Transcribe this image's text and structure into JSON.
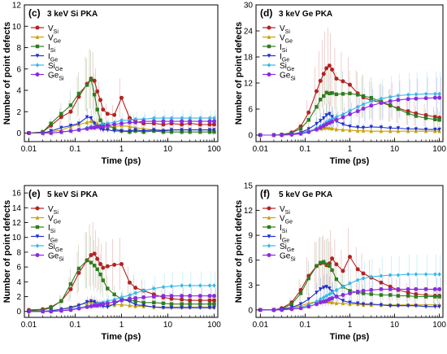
{
  "colors": {
    "V_Si": "#b22222",
    "V_Ge": "#c8a000",
    "I_Si": "#2e7d1e",
    "I_Ge": "#1f2fd0",
    "Si_Ge": "#35b8e6",
    "Ge_Si": "#8a2be2"
  },
  "legend_labels": [
    {
      "key": "V_Si",
      "base": "V",
      "sub": "Si"
    },
    {
      "key": "V_Ge",
      "base": "V",
      "sub": "Ge"
    },
    {
      "key": "I_Si",
      "base": "I",
      "sub": "Si"
    },
    {
      "key": "I_Ge",
      "base": "I",
      "sub": "Ge"
    },
    {
      "key": "Si_Ge",
      "base": "Si",
      "sub": "Ge"
    },
    {
      "key": "Ge_Si",
      "base": "Ge",
      "sub": "Si"
    }
  ],
  "chart_data": [
    {
      "type": "line",
      "panel_label": "(c)",
      "title": "3 keV Si PKA",
      "xlabel": "Time (ps)",
      "ylabel": "Number of point defects",
      "xscale": "log",
      "xlim": [
        0.008,
        120
      ],
      "xticks": [
        0.01,
        0.1,
        1,
        10,
        100
      ],
      "xtick_labels": [
        "0.01",
        "0.1",
        "1",
        "10",
        "100"
      ],
      "ylim": [
        -0.8,
        12
      ],
      "yticks": [
        0,
        2,
        4,
        6,
        8,
        10,
        12
      ],
      "legend_position": "upper-left",
      "x": [
        0.01,
        0.02,
        0.03,
        0.05,
        0.08,
        0.12,
        0.18,
        0.22,
        0.26,
        0.3,
        0.35,
        0.4,
        0.5,
        0.7,
        1,
        1.5,
        2,
        3,
        5,
        8,
        12,
        20,
        30,
        50,
        80,
        100
      ],
      "series": [
        {
          "key": "V_Si",
          "values": [
            0,
            0.1,
            0.7,
            1.5,
            2.0,
            3.4,
            4.6,
            5.1,
            4.9,
            3.9,
            3.1,
            2.2,
            1.8,
            1.7,
            3.3,
            1.4,
            1.1,
            0.9,
            0.9,
            0.8,
            0.9,
            0.8,
            0.9,
            0.8,
            0.8,
            0.8
          ]
        },
        {
          "key": "V_Ge",
          "values": [
            0,
            0,
            0.1,
            0.3,
            0.6,
            0.8,
            1.0,
            1.1,
            1.0,
            0.9,
            0.7,
            0.5,
            0.5,
            0.6,
            0.7,
            0.6,
            0.5,
            0.4,
            0.3,
            0.3,
            0.3,
            0.3,
            0.3,
            0.3,
            0.3,
            0.3
          ]
        },
        {
          "key": "I_Si",
          "values": [
            0,
            0.1,
            0.9,
            1.8,
            2.6,
            3.7,
            4.5,
            5.0,
            3.6,
            2.2,
            1.2,
            0.8,
            0.8,
            0.4,
            0.2,
            0.1,
            0.2,
            0.1,
            0.2,
            0.1,
            0.1,
            0.1,
            0.1,
            0.1,
            0.1,
            0.1
          ]
        },
        {
          "key": "I_Ge",
          "values": [
            0,
            0,
            0.2,
            0.5,
            0.7,
            0.9,
            1.5,
            1.4,
            0.9,
            0.6,
            0.4,
            0.3,
            0.3,
            0.2,
            0.2,
            0.2,
            0.3,
            0.2,
            0.3,
            0.2,
            0.3,
            0.3,
            0.3,
            0.3,
            0.3,
            0.3
          ]
        },
        {
          "key": "Si_Ge",
          "values": [
            0,
            0,
            0,
            0.1,
            0.2,
            0.3,
            0.5,
            0.6,
            0.6,
            0.7,
            0.7,
            0.8,
            0.9,
            1.0,
            1.2,
            1.2,
            1.3,
            1.3,
            1.4,
            1.4,
            1.4,
            1.4,
            1.4,
            1.4,
            1.4,
            1.4
          ]
        },
        {
          "key": "Ge_Si",
          "values": [
            0,
            0,
            0,
            0.1,
            0.2,
            0.3,
            0.4,
            0.5,
            0.5,
            0.6,
            0.6,
            0.6,
            0.7,
            0.8,
            0.9,
            1.0,
            1.0,
            1.1,
            1.1,
            1.1,
            1.1,
            1.1,
            1.1,
            1.1,
            1.1,
            1.1
          ]
        }
      ]
    },
    {
      "type": "line",
      "panel_label": "(d)",
      "title": "3 keV Ge PKA",
      "xlabel": "Time (ps)",
      "ylabel": "Number of point defects",
      "xscale": "log",
      "xlim": [
        0.008,
        120
      ],
      "xticks": [
        0.01,
        0.1,
        1,
        10,
        100
      ],
      "xtick_labels": [
        "0.01",
        "0.1",
        "1",
        "10",
        "100"
      ],
      "ylim": [
        -1.5,
        30
      ],
      "yticks": [
        0,
        6,
        12,
        18,
        24,
        30
      ],
      "legend_position": "upper-left",
      "x": [
        0.01,
        0.02,
        0.03,
        0.05,
        0.08,
        0.12,
        0.18,
        0.22,
        0.26,
        0.3,
        0.35,
        0.4,
        0.5,
        0.7,
        1,
        1.5,
        2,
        3,
        5,
        8,
        12,
        20,
        30,
        50,
        80,
        100
      ],
      "series": [
        {
          "key": "V_Si",
          "values": [
            0,
            0,
            0.1,
            0.6,
            2.0,
            5.2,
            10.1,
            12.5,
            14.1,
            15.4,
            16.0,
            15.1,
            13.0,
            12.4,
            11.6,
            9.6,
            8.7,
            8.0,
            7.5,
            6.8,
            6.2,
            5.5,
            5.0,
            4.6,
            4.2,
            4.0
          ]
        },
        {
          "key": "V_Ge",
          "values": [
            0,
            0,
            0,
            0.2,
            0.5,
            0.9,
            1.3,
            1.5,
            1.6,
            1.7,
            1.6,
            1.5,
            1.3,
            1.2,
            1.1,
            1.0,
            1.0,
            0.9,
            0.9,
            0.9,
            0.9,
            0.9,
            0.9,
            0.9,
            0.9,
            0.9
          ]
        },
        {
          "key": "I_Si",
          "values": [
            0,
            0,
            0.1,
            0.5,
            1.5,
            3.5,
            6.5,
            8.2,
            9.0,
            9.8,
            9.6,
            9.7,
            9.4,
            9.5,
            9.6,
            9.3,
            9.0,
            8.6,
            7.7,
            6.9,
            6.0,
            5.0,
            4.4,
            3.9,
            3.6,
            3.5
          ]
        },
        {
          "key": "I_Ge",
          "values": [
            0,
            0,
            0,
            0.2,
            0.6,
            1.4,
            2.6,
            3.3,
            3.9,
            4.6,
            4.9,
            4.2,
            3.2,
            2.5,
            2.0,
            1.8,
            1.7,
            1.9,
            1.8,
            1.6,
            1.6,
            1.4,
            1.4,
            1.3,
            1.3,
            1.3
          ]
        },
        {
          "key": "Si_Ge",
          "values": [
            0,
            0,
            0,
            0.1,
            0.4,
            0.9,
            1.6,
            2.1,
            2.5,
            3.0,
            3.4,
            3.7,
            4.2,
            4.8,
            5.6,
            6.5,
            7.1,
            7.8,
            8.4,
            8.8,
            9.1,
            9.3,
            9.4,
            9.5,
            9.5,
            9.5
          ]
        },
        {
          "key": "Ge_Si",
          "values": [
            0,
            0,
            0,
            0.1,
            0.3,
            0.7,
            1.3,
            1.7,
            2.1,
            2.5,
            2.8,
            3.1,
            3.5,
            4.1,
            4.8,
            5.5,
            6.1,
            6.8,
            7.4,
            7.8,
            8.1,
            8.3,
            8.4,
            8.5,
            8.6,
            8.6
          ]
        }
      ]
    },
    {
      "type": "line",
      "panel_label": "(e)",
      "title": "5 keV Si PKA",
      "xlabel": "Time (ps)",
      "ylabel": "Number of point defects",
      "xscale": "log",
      "xlim": [
        0.008,
        120
      ],
      "xticks": [
        0.01,
        0.1,
        1,
        10,
        100
      ],
      "xtick_labels": [
        "0.01",
        "0.1",
        "1",
        "10",
        "100"
      ],
      "ylim": [
        -0.8,
        17
      ],
      "yticks": [
        0,
        2,
        4,
        6,
        8,
        10,
        12,
        14,
        16
      ],
      "legend_position": "upper-left",
      "x": [
        0.01,
        0.02,
        0.03,
        0.05,
        0.08,
        0.12,
        0.18,
        0.22,
        0.26,
        0.3,
        0.35,
        0.4,
        0.5,
        0.7,
        1,
        1.5,
        2,
        3,
        5,
        8,
        12,
        20,
        30,
        50,
        80,
        100
      ],
      "series": [
        {
          "key": "V_Si",
          "values": [
            0.2,
            0.3,
            0.6,
            1.4,
            3.0,
            5.2,
            6.9,
            7.6,
            7.8,
            7.1,
            6.4,
            5.9,
            6.1,
            6.3,
            6.4,
            3.9,
            3.2,
            2.8,
            2.3,
            1.9,
            1.7,
            1.6,
            1.5,
            1.5,
            1.5,
            1.5
          ]
        },
        {
          "key": "V_Ge",
          "values": [
            0,
            0,
            0.1,
            0.3,
            0.6,
            0.9,
            1.1,
            1.3,
            1.3,
            1.2,
            1.1,
            1.0,
            0.9,
            0.9,
            0.9,
            0.8,
            0.7,
            0.7,
            0.6,
            0.6,
            0.6,
            0.6,
            0.6,
            0.6,
            0.6,
            0.6
          ]
        },
        {
          "key": "I_Si",
          "values": [
            0.1,
            0.2,
            0.5,
            1.4,
            3.7,
            5.8,
            6.9,
            6.6,
            6.2,
            5.7,
            5.0,
            4.2,
            3.1,
            2.3,
            1.7,
            1.5,
            1.4,
            1.2,
            1.2,
            1.1,
            1.0,
            1.0,
            1.0,
            1.0,
            1.0,
            1.0
          ]
        },
        {
          "key": "I_Ge",
          "values": [
            0,
            0,
            0.1,
            0.3,
            0.5,
            0.8,
            1.3,
            1.4,
            1.3,
            1.0,
            0.8,
            0.7,
            0.6,
            1.0,
            1.6,
            1.4,
            0.9,
            0.8,
            0.6,
            0.5,
            0.5,
            0.5,
            0.5,
            0.5,
            0.5,
            0.5
          ]
        },
        {
          "key": "Si_Ge",
          "values": [
            0,
            0,
            0,
            0.1,
            0.3,
            0.5,
            0.7,
            0.8,
            0.9,
            1.0,
            1.1,
            1.2,
            1.4,
            1.6,
            1.9,
            2.2,
            2.5,
            2.8,
            3.1,
            3.3,
            3.4,
            3.5,
            3.5,
            3.5,
            3.5,
            3.5
          ]
        },
        {
          "key": "Ge_Si",
          "values": [
            0,
            0,
            0,
            0.1,
            0.2,
            0.4,
            0.6,
            0.7,
            0.8,
            0.8,
            0.9,
            1.0,
            1.1,
            1.3,
            1.5,
            1.7,
            1.8,
            1.9,
            2.0,
            2.1,
            2.1,
            2.1,
            2.1,
            2.1,
            2.1,
            2.1
          ]
        }
      ]
    },
    {
      "type": "line",
      "panel_label": "(f)",
      "title": "5 keV Ge PKA",
      "xlabel": "Time (ps)",
      "ylabel": "Number of point defects",
      "xscale": "log",
      "xlim": [
        0.008,
        120
      ],
      "xticks": [
        0.01,
        0.1,
        1,
        10,
        100
      ],
      "xtick_labels": [
        "0.01",
        "0.1",
        "1",
        "10",
        "100"
      ],
      "ylim": [
        -0.9,
        15
      ],
      "yticks": [
        0,
        3,
        6,
        9,
        12,
        15
      ],
      "legend_position": "upper-left",
      "x": [
        0.01,
        0.02,
        0.03,
        0.05,
        0.08,
        0.12,
        0.18,
        0.22,
        0.26,
        0.3,
        0.35,
        0.4,
        0.5,
        0.7,
        1,
        1.5,
        2,
        3,
        5,
        8,
        12,
        20,
        30,
        50,
        80,
        100
      ],
      "series": [
        {
          "key": "V_Si",
          "values": [
            0,
            0,
            0.2,
            0.9,
            2.4,
            4.1,
            5.3,
            5.6,
            5.7,
            5.4,
            5.6,
            6.2,
            5.5,
            4.7,
            6.4,
            4.9,
            4.4,
            3.9,
            3.3,
            2.8,
            2.4,
            2.1,
            1.9,
            1.8,
            1.7,
            1.7
          ]
        },
        {
          "key": "V_Ge",
          "values": [
            0,
            0,
            0.1,
            0.2,
            0.5,
            0.8,
            1.0,
            1.1,
            1.1,
            1.0,
            1.0,
            0.9,
            0.8,
            0.8,
            0.7,
            0.7,
            0.6,
            0.6,
            0.6,
            0.6,
            0.6,
            0.6,
            0.6,
            0.6,
            0.6,
            0.6
          ]
        },
        {
          "key": "I_Si",
          "values": [
            0,
            0,
            0.1,
            0.7,
            2.0,
            3.8,
            5.3,
            5.7,
            5.8,
            5.5,
            5.3,
            4.8,
            3.7,
            2.8,
            2.3,
            2.1,
            2.0,
            1.9,
            1.8,
            1.8,
            1.7,
            1.7,
            1.6,
            1.6,
            1.6,
            1.6
          ]
        },
        {
          "key": "I_Ge",
          "values": [
            0,
            0,
            0.1,
            0.3,
            0.7,
            1.3,
            2.1,
            2.5,
            2.7,
            2.8,
            2.6,
            2.2,
            1.6,
            1.1,
            0.9,
            0.8,
            0.7,
            0.7,
            0.6,
            0.5,
            0.5,
            0.5,
            0.5,
            0.4,
            0.4,
            0.4
          ]
        },
        {
          "key": "Si_Ge",
          "values": [
            0,
            0,
            0,
            0.1,
            0.3,
            0.6,
            1.0,
            1.3,
            1.5,
            1.7,
            1.9,
            2.1,
            2.4,
            2.8,
            3.2,
            3.6,
            3.8,
            4.0,
            4.1,
            4.2,
            4.2,
            4.3,
            4.3,
            4.3,
            4.3,
            4.3
          ]
        },
        {
          "key": "Ge_Si",
          "values": [
            0,
            0,
            0,
            0.1,
            0.2,
            0.4,
            0.7,
            0.9,
            1.0,
            1.1,
            1.3,
            1.4,
            1.6,
            1.8,
            2.0,
            2.2,
            2.3,
            2.4,
            2.5,
            2.5,
            2.5,
            2.5,
            2.5,
            2.5,
            2.5,
            2.5
          ]
        }
      ]
    }
  ]
}
